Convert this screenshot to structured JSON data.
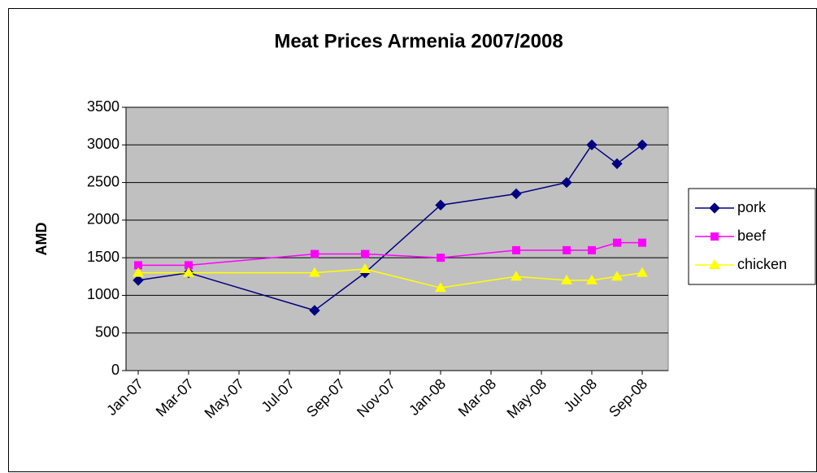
{
  "chart_data": {
    "type": "line",
    "title": "Meat Prices Armenia 2007/2008",
    "y_label": "AMD",
    "x": [
      "2007-01",
      "2007-03",
      "2007-08",
      "2007-10",
      "2008-01",
      "2008-04",
      "2008-06",
      "2008-07",
      "2008-08",
      "2008-09"
    ],
    "series": [
      {
        "name": "pork",
        "color": "#000080",
        "marker": "diamond",
        "values": [
          1200,
          1300,
          800,
          1300,
          2200,
          2350,
          2500,
          3000,
          2750,
          3000
        ]
      },
      {
        "name": "beef",
        "color": "#ff00ff",
        "marker": "square",
        "values": [
          1400,
          1400,
          1550,
          1550,
          1500,
          1600,
          1600,
          1600,
          1700,
          1700
        ]
      },
      {
        "name": "chicken",
        "color": "#ffff00",
        "marker": "triangle",
        "values": [
          1300,
          1300,
          1300,
          1350,
          1100,
          1250,
          1200,
          1200,
          1250,
          1300
        ]
      }
    ],
    "xlim": [
      "2007-01",
      "2008-09"
    ],
    "xticks": [
      {
        "value": "2007-01",
        "label": "Jan-07"
      },
      {
        "value": "2007-03",
        "label": "Mar-07"
      },
      {
        "value": "2007-05",
        "label": "May-07"
      },
      {
        "value": "2007-07",
        "label": "Jul-07"
      },
      {
        "value": "2007-09",
        "label": "Sep-07"
      },
      {
        "value": "2007-11",
        "label": "Nov-07"
      },
      {
        "value": "2008-01",
        "label": "Jan-08"
      },
      {
        "value": "2008-03",
        "label": "Mar-08"
      },
      {
        "value": "2008-05",
        "label": "May-08"
      },
      {
        "value": "2008-07",
        "label": "Jul-08"
      },
      {
        "value": "2008-09",
        "label": "Sep-08"
      }
    ],
    "ylim": [
      0,
      3500
    ],
    "yticks": [
      0,
      500,
      1000,
      1500,
      2000,
      2500,
      3000,
      3500
    ],
    "grid": true,
    "legend": "right"
  }
}
